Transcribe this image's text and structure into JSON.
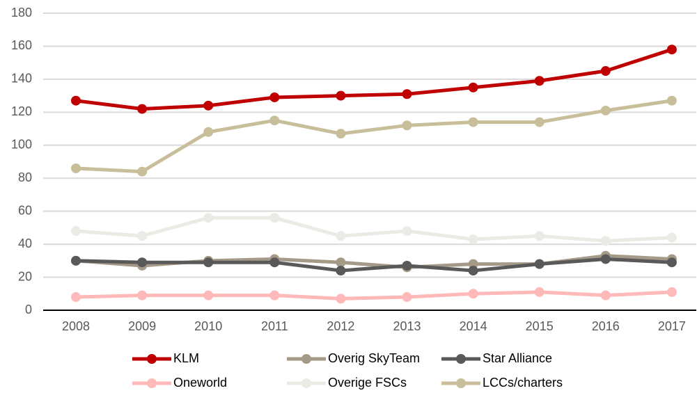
{
  "chart_data": {
    "type": "line",
    "categories": [
      "2008",
      "2009",
      "2010",
      "2011",
      "2012",
      "2013",
      "2014",
      "2015",
      "2016",
      "2017"
    ],
    "series": [
      {
        "name": "KLM",
        "color": "#c00000",
        "values": [
          127,
          122,
          124,
          129,
          130,
          131,
          135,
          139,
          145,
          158
        ]
      },
      {
        "name": "Overig SkyTeam",
        "color": "#a49a87",
        "values": [
          30,
          27,
          30,
          31,
          29,
          26,
          28,
          28,
          33,
          31
        ]
      },
      {
        "name": "Star Alliance",
        "color": "#595959",
        "values": [
          30,
          29,
          29,
          29,
          24,
          27,
          24,
          28,
          31,
          29
        ]
      },
      {
        "name": "Oneworld",
        "color": "#ffb9b9",
        "values": [
          8,
          9,
          9,
          9,
          7,
          8,
          10,
          11,
          9,
          11
        ]
      },
      {
        "name": "Overige FSCs",
        "color": "#ebebe6",
        "values": [
          48,
          45,
          56,
          56,
          45,
          48,
          43,
          45,
          42,
          44
        ]
      },
      {
        "name": "LCCs/charters",
        "color": "#c8bf9a",
        "values": [
          86,
          84,
          108,
          115,
          107,
          112,
          114,
          114,
          121,
          127
        ]
      }
    ],
    "ylim": [
      0,
      180
    ],
    "yticks": [
      0,
      20,
      40,
      60,
      80,
      100,
      120,
      140,
      160,
      180
    ],
    "grid": true
  }
}
